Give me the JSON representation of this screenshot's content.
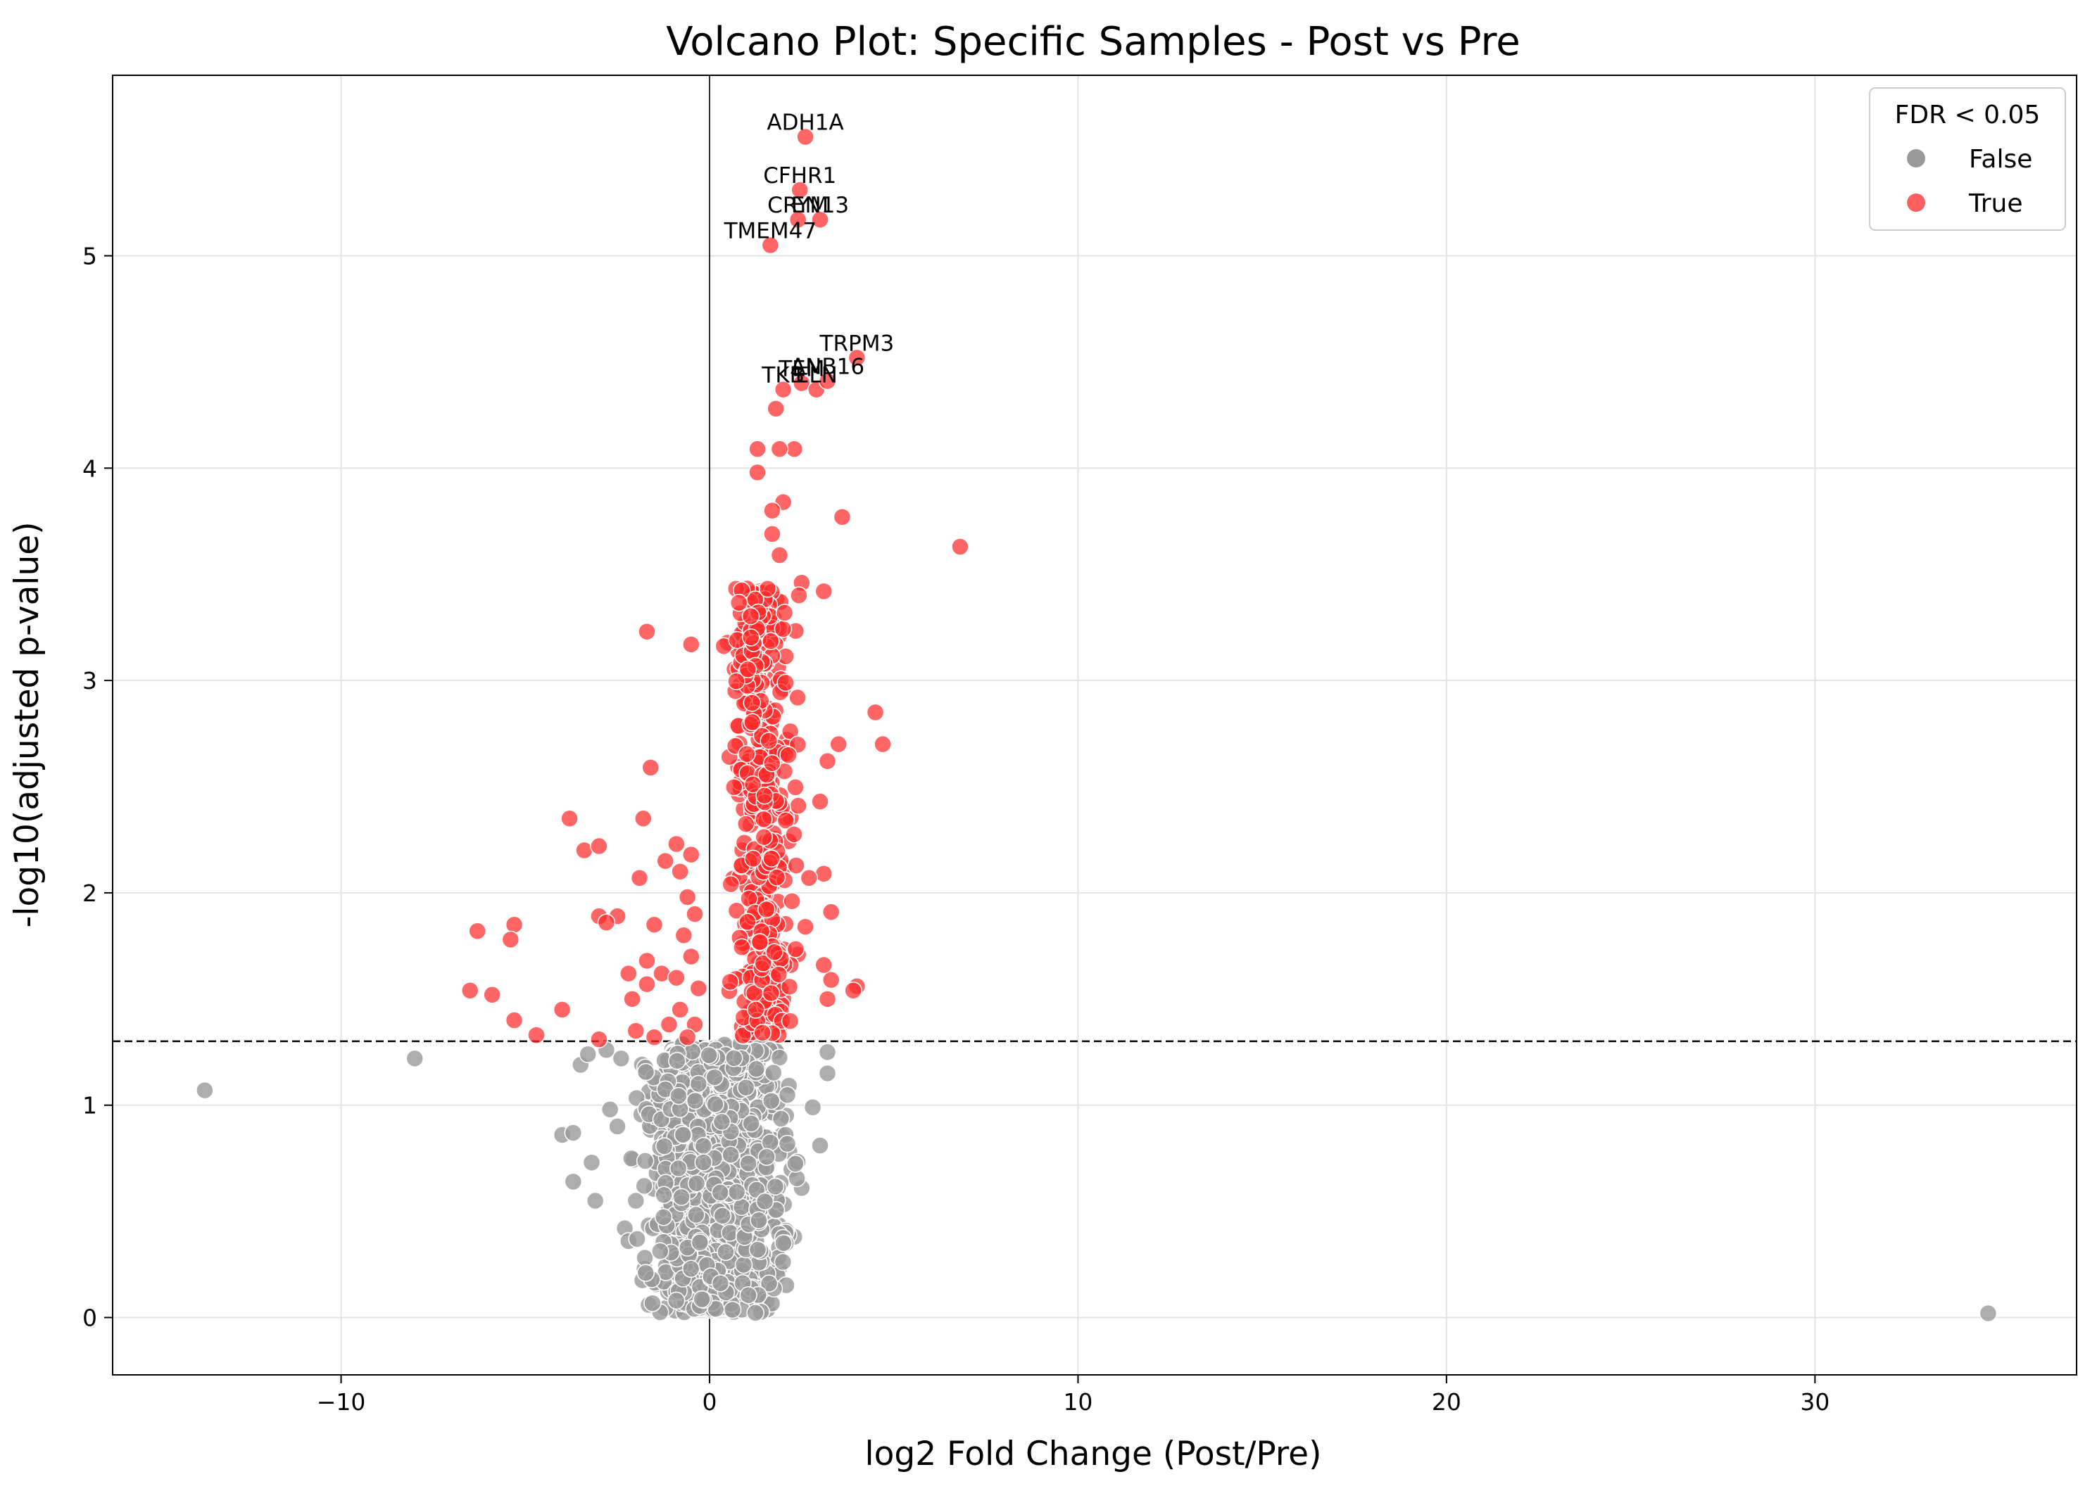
{
  "chart_data": {
    "type": "scatter",
    "title": "Volcano Plot: Specific Samples - Post vs Pre",
    "xlabel": "log2 Fold Change (Post/Pre)",
    "ylabel": "-log10(adjusted p-value)",
    "xlim": [
      -16.2,
      37.1
    ],
    "ylim": [
      -0.27,
      5.85
    ],
    "x_ticks": [
      -10,
      0,
      10,
      20,
      30
    ],
    "x_tick_labels": [
      "−10",
      "0",
      "10",
      "20",
      "30"
    ],
    "y_ticks": [
      0,
      1,
      2,
      3,
      4,
      5
    ],
    "y_tick_labels": [
      "0",
      "1",
      "2",
      "3",
      "4",
      "5"
    ],
    "grid": true,
    "threshold_line": {
      "y": 1.301,
      "style": "dashed"
    },
    "zero_line": {
      "x": 0
    },
    "legend": {
      "title": "FDR < 0.05",
      "position": "top-right",
      "entries": [
        {
          "label": "False",
          "color": "#999999"
        },
        {
          "label": "True",
          "color": "#ff2a2a"
        }
      ]
    },
    "series": [
      {
        "name": "False",
        "color": "#999999",
        "points": [
          [
            -13.7,
            1.07
          ],
          [
            -8.0,
            1.22
          ],
          [
            34.7,
            0.02
          ],
          [
            -4.0,
            0.86
          ],
          [
            -3.7,
            0.87
          ],
          [
            -3.7,
            0.64
          ],
          [
            -3.2,
            0.73
          ],
          [
            -3.1,
            0.55
          ],
          [
            -3.5,
            1.19
          ],
          [
            -3.3,
            1.24
          ],
          [
            -2.8,
            1.26
          ],
          [
            -2.4,
            1.22
          ],
          [
            -2.7,
            0.98
          ],
          [
            -2.5,
            0.9
          ],
          [
            -2.3,
            0.42
          ],
          [
            -2.2,
            0.36
          ],
          [
            -2.0,
            0.55
          ],
          [
            2.8,
            0.99
          ],
          [
            3.0,
            0.81
          ],
          [
            3.2,
            1.25
          ],
          [
            3.2,
            1.15
          ],
          [
            2.5,
            0.61
          ],
          [
            2.3,
            0.38
          ],
          [
            1.7,
            0.25
          ],
          [
            1.4,
            0.15
          ]
        ],
        "cloud": {
          "count": 1150,
          "x_range": [
            -2.8,
            3.0
          ],
          "y_range": [
            0.02,
            1.29
          ],
          "center_x": 0.2
        }
      },
      {
        "name": "True",
        "color": "#ff2a2a",
        "points": [
          [
            2.6,
            5.56
          ],
          [
            2.45,
            5.31
          ],
          [
            2.4,
            5.17
          ],
          [
            3.0,
            5.17
          ],
          [
            1.65,
            5.05
          ],
          [
            4.0,
            4.52
          ],
          [
            2.0,
            4.37
          ],
          [
            2.5,
            4.4
          ],
          [
            2.9,
            4.37
          ],
          [
            3.2,
            4.41
          ],
          [
            1.8,
            4.28
          ],
          [
            1.3,
            4.09
          ],
          [
            2.3,
            4.09
          ],
          [
            1.9,
            4.09
          ],
          [
            1.3,
            3.98
          ],
          [
            2.0,
            3.84
          ],
          [
            1.7,
            3.8
          ],
          [
            3.6,
            3.77
          ],
          [
            1.7,
            3.69
          ],
          [
            6.8,
            3.63
          ],
          [
            1.9,
            3.59
          ],
          [
            2.5,
            3.46
          ],
          [
            3.1,
            3.42
          ],
          [
            -1.7,
            3.23
          ],
          [
            -0.5,
            3.17
          ],
          [
            4.5,
            2.85
          ],
          [
            4.7,
            2.7
          ],
          [
            3.5,
            2.7
          ],
          [
            3.2,
            2.62
          ],
          [
            3.0,
            2.43
          ],
          [
            -4.0,
            1.45
          ],
          [
            -1.6,
            2.59
          ],
          [
            -3.8,
            2.35
          ],
          [
            -3.4,
            2.2
          ],
          [
            -3.0,
            2.22
          ],
          [
            -1.8,
            2.35
          ],
          [
            -1.9,
            2.07
          ],
          [
            -6.3,
            1.82
          ],
          [
            -5.3,
            1.85
          ],
          [
            -5.4,
            1.78
          ],
          [
            -3.0,
            1.89
          ],
          [
            -2.5,
            1.89
          ],
          [
            -2.8,
            1.86
          ],
          [
            -6.5,
            1.54
          ],
          [
            -5.9,
            1.52
          ],
          [
            -5.3,
            1.4
          ],
          [
            -4.7,
            1.33
          ],
          [
            -3.0,
            1.31
          ],
          [
            -2.2,
            1.62
          ],
          [
            -2.1,
            1.5
          ],
          [
            -1.7,
            1.68
          ],
          [
            -1.7,
            1.57
          ],
          [
            -2.0,
            1.35
          ],
          [
            -1.5,
            1.85
          ],
          [
            -1.3,
            1.62
          ],
          [
            -1.2,
            2.15
          ],
          [
            -0.9,
            2.23
          ],
          [
            -0.8,
            2.1
          ],
          [
            -0.5,
            2.18
          ],
          [
            -0.6,
            1.98
          ],
          [
            -0.4,
            1.9
          ],
          [
            -0.7,
            1.8
          ],
          [
            -0.5,
            1.7
          ],
          [
            -0.9,
            1.6
          ],
          [
            -0.3,
            1.55
          ],
          [
            -0.8,
            1.45
          ],
          [
            -0.4,
            1.38
          ],
          [
            -1.1,
            1.38
          ],
          [
            -0.6,
            1.32
          ],
          [
            -1.5,
            1.32
          ],
          [
            4.0,
            1.56
          ],
          [
            3.9,
            1.54
          ],
          [
            3.3,
            1.59
          ],
          [
            3.2,
            1.5
          ],
          [
            3.1,
            1.66
          ],
          [
            3.3,
            1.91
          ],
          [
            3.1,
            2.09
          ],
          [
            2.7,
            2.07
          ],
          [
            2.6,
            1.84
          ],
          [
            2.4,
            1.71
          ],
          [
            2.2,
            1.66
          ],
          [
            2.0,
            1.5
          ]
        ],
        "cloud": {
          "count": 420,
          "x_range": [
            0.1,
            2.8
          ],
          "y_range": [
            1.31,
            3.45
          ],
          "center_x": 1.4
        }
      }
    ],
    "annotations": [
      {
        "text": "ADH1A",
        "x": 2.6,
        "y": 5.56
      },
      {
        "text": "CFHR1",
        "x": 2.45,
        "y": 5.31
      },
      {
        "text": "CRYM",
        "x": 2.4,
        "y": 5.17
      },
      {
        "text": "EN13",
        "x": 3.0,
        "y": 5.17
      },
      {
        "text": "TMEM47",
        "x": 1.65,
        "y": 5.05
      },
      {
        "text": "TRPM3",
        "x": 4.0,
        "y": 4.52
      },
      {
        "text": "TKB",
        "x": 2.0,
        "y": 4.37
      },
      {
        "text": "TEM",
        "x": 2.5,
        "y": 4.4
      },
      {
        "text": "ELN",
        "x": 2.9,
        "y": 4.37
      },
      {
        "text": "ANB16",
        "x": 3.2,
        "y": 4.41
      }
    ]
  }
}
